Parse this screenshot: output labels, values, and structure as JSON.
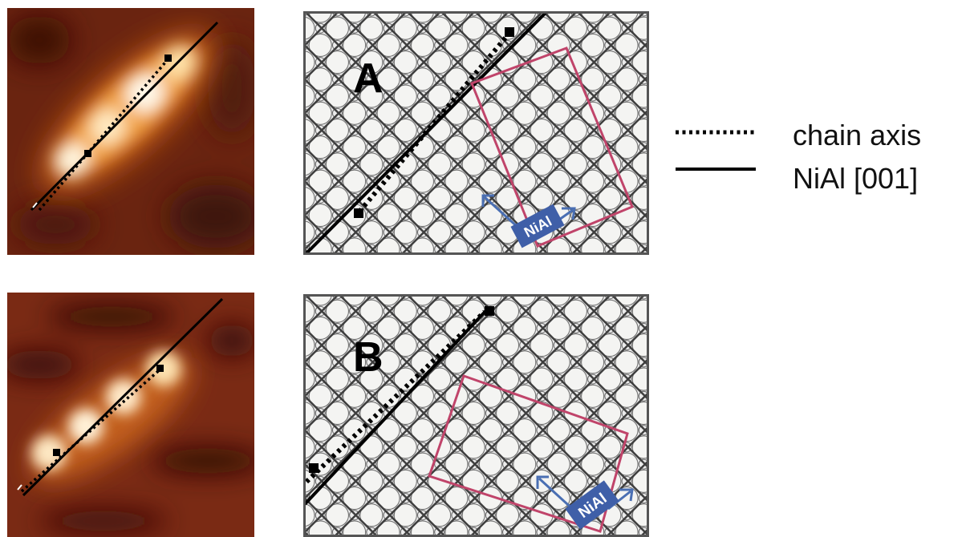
{
  "panels": {
    "a": {
      "letter": "A",
      "substrate_label": "NiAl"
    },
    "b": {
      "letter": "B",
      "substrate_label": "NiAl"
    }
  },
  "legend": {
    "chain_axis": "chain axis",
    "nial_axis": "NiAl [001]"
  },
  "colors": {
    "lattice_lines": "#444444",
    "lattice_background": "#eeeeee",
    "unit_cell": "#c0446a",
    "substrate_arrows": "#4a6fb3",
    "substrate_badge": "#3f5fa8"
  }
}
